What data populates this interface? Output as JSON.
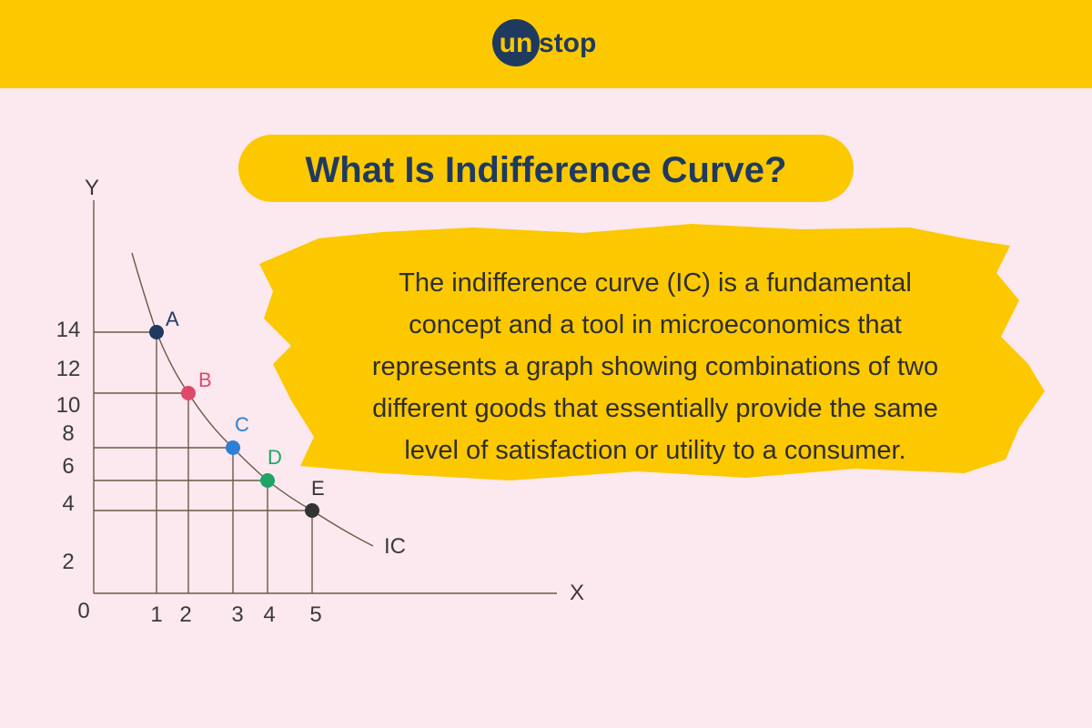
{
  "header": {
    "logo_mark": "un",
    "logo_text": "stop"
  },
  "title": "What Is Indifference Curve?",
  "description": {
    "lines": [
      "The indifference curve (IC) is a fundamental",
      "concept and a tool in microeconomics that",
      "represents a graph showing combinations of two",
      "different goods that essentially provide the same",
      "level of satisfaction or utility to a consumer."
    ]
  },
  "diagram": {
    "y_axis_label": "Y",
    "x_axis_label": "X",
    "origin_label": "0",
    "curve_label": "IC",
    "y_ticks": [
      "14",
      "12",
      "10",
      "8",
      "6",
      "4",
      "2"
    ],
    "x_ticks": [
      "1",
      "2",
      "3",
      "4",
      "5"
    ],
    "points": [
      {
        "label": "A"
      },
      {
        "label": "B"
      },
      {
        "label": "C"
      },
      {
        "label": "D"
      },
      {
        "label": "E"
      }
    ]
  }
}
